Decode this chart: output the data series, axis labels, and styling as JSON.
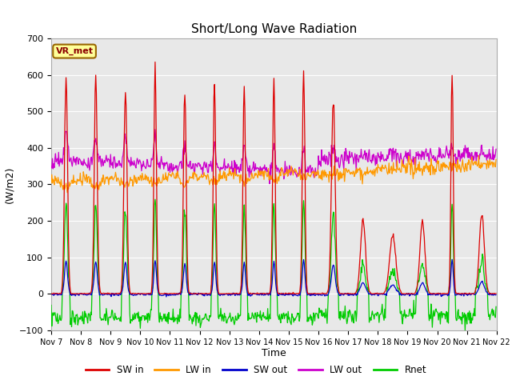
{
  "title": "Short/Long Wave Radiation",
  "xlabel": "Time",
  "ylabel": "(W/m2)",
  "ylim": [
    -100,
    700
  ],
  "yticks": [
    -100,
    0,
    100,
    200,
    300,
    400,
    500,
    600,
    700
  ],
  "xtick_labels": [
    "Nov 7",
    "Nov 8",
    "Nov 9",
    "Nov 10",
    "Nov 11",
    "Nov 12",
    "Nov 13",
    "Nov 14",
    "Nov 15",
    "Nov 16",
    "Nov 17",
    "Nov 18",
    "Nov 19",
    "Nov 20",
    "Nov 21",
    "Nov 22"
  ],
  "station_label": "VR_met",
  "colors": {
    "SW_in": "#dd0000",
    "LW_in": "#ff9900",
    "SW_out": "#0000cc",
    "LW_out": "#cc00cc",
    "Rnet": "#00cc00"
  },
  "legend_labels": [
    "SW in",
    "LW in",
    "SW out",
    "LW out",
    "Rnet"
  ],
  "bg_color": "#e8e8e8",
  "fig_color": "#ffffff",
  "grid_color": "#ffffff",
  "pts_per_day": 48,
  "num_days": 15
}
